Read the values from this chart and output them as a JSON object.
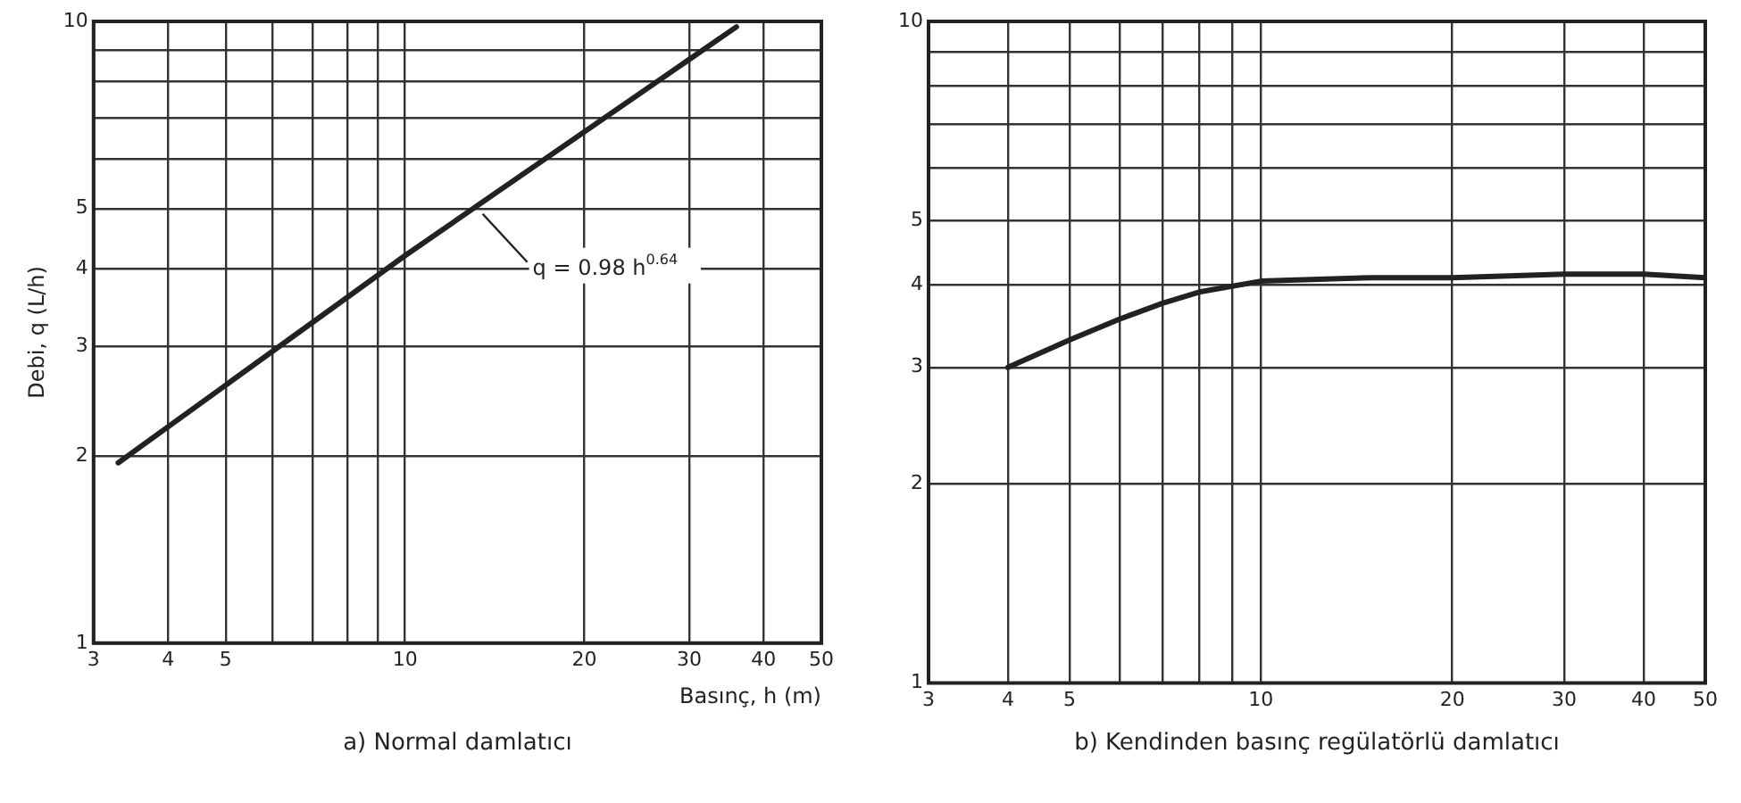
{
  "chart_data": [
    {
      "type": "line",
      "xlabel": "Basınç, h (m)",
      "ylabel": "Debi, q (L/h)",
      "log": "xy",
      "grid": true,
      "legend": false,
      "marker": "none",
      "line_style": "solid",
      "xlim": [
        3,
        50
      ],
      "xticks": [
        3,
        4,
        5,
        {
          "value": 6,
          "label": null
        },
        {
          "value": 7,
          "label": null
        },
        {
          "value": 8,
          "label": null
        },
        {
          "value": 9,
          "label": null
        },
        10,
        20,
        30,
        40,
        50
      ],
      "ylim": [
        1,
        10
      ],
      "yticks": [
        1,
        2,
        3,
        4,
        5,
        {
          "value": 6,
          "label": null
        },
        {
          "value": 7,
          "label": null
        },
        {
          "value": 8,
          "label": null
        },
        {
          "value": 9,
          "label": null
        },
        10
      ],
      "x": [
        3.3,
        10,
        36
      ],
      "series": [
        {
          "color": "#222222",
          "values": [
            1.95,
            4.2,
            9.8
          ]
        }
      ],
      "annotations": [
        {
          "text": "q = 0.98 h$^{0.64}$",
          "x": 13.5,
          "y": 5
        },
        "a) Normal damlatıcı"
      ]
    },
    {
      "type": "line",
      "log": "xy",
      "grid": true,
      "legend": false,
      "marker": "none",
      "line_style": "solid",
      "xlim": [
        3,
        50
      ],
      "xticks": [
        3,
        4,
        5,
        {
          "value": 6,
          "label": null
        },
        {
          "value": 7,
          "label": null
        },
        {
          "value": 8,
          "label": null
        },
        {
          "value": 9,
          "label": null
        },
        10,
        20,
        30,
        40,
        50
      ],
      "ylim": [
        1,
        10
      ],
      "yticks": [
        1,
        2,
        3,
        4,
        5,
        {
          "value": 6,
          "label": null
        },
        {
          "value": 7,
          "label": null
        },
        {
          "value": 8,
          "label": null
        },
        {
          "value": 9,
          "label": null
        },
        10
      ],
      "x": [
        4,
        5,
        6,
        7,
        8,
        10,
        15,
        20,
        30,
        40,
        50
      ],
      "series": [
        {
          "color": "#222222",
          "values": [
            3.0,
            3.3,
            3.55,
            3.75,
            3.9,
            4.05,
            4.1,
            4.1,
            4.15,
            4.15,
            4.1
          ]
        }
      ],
      "annotations": [
        "b) Kendinden basınç regülatörlü damlatıcı"
      ]
    }
  ]
}
